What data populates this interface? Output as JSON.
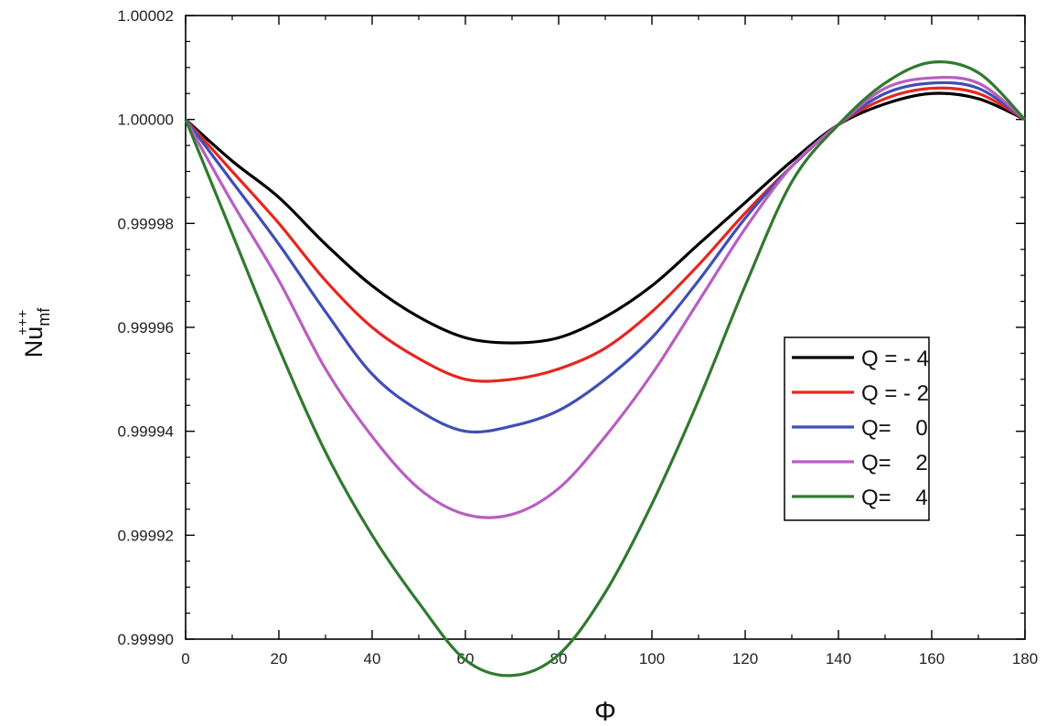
{
  "chart_data": {
    "type": "line",
    "title": "",
    "xlabel": "Φ",
    "ylabel": {
      "base": "Nu",
      "superscript": "+++",
      "subscript": "mf"
    },
    "xlim": [
      0,
      180
    ],
    "ylim": [
      0.9999,
      1.00002
    ],
    "xticks": [
      "0",
      "20",
      "40",
      "60",
      "80",
      "100",
      "120",
      "140",
      "160",
      "180"
    ],
    "yticks": [
      "0.99990",
      "0.99992",
      "0.99994",
      "0.99996",
      "0.99998",
      "1.00000",
      "1.00002"
    ],
    "grid": false,
    "legend_position": "right-middle",
    "x": [
      0,
      10,
      20,
      30,
      40,
      50,
      60,
      70,
      80,
      90,
      100,
      110,
      120,
      130,
      140,
      150,
      160,
      170,
      180
    ],
    "series": [
      {
        "name": "Q = - 4",
        "color": "#000000",
        "values": [
          1.0,
          0.999992,
          0.999985,
          0.999976,
          0.999968,
          0.999962,
          0.999958,
          0.999957,
          0.999958,
          0.999962,
          0.999968,
          0.999976,
          0.999984,
          0.999992,
          0.999999,
          1.000003,
          1.000005,
          1.000004,
          1.0
        ]
      },
      {
        "name": "Q = - 2",
        "color": "#e8251f",
        "values": [
          1.0,
          0.99999,
          0.99998,
          0.999969,
          0.99996,
          0.999954,
          0.99995,
          0.99995,
          0.999952,
          0.999956,
          0.999963,
          0.999972,
          0.999982,
          0.999991,
          0.999999,
          1.000004,
          1.000006,
          1.000005,
          1.0
        ]
      },
      {
        "name": "Q=    0",
        "color": "#3f4fb4",
        "values": [
          1.0,
          0.999988,
          0.999976,
          0.999963,
          0.999951,
          0.999944,
          0.99994,
          0.999941,
          0.999944,
          0.99995,
          0.999958,
          0.999969,
          0.999981,
          0.999991,
          0.999999,
          1.000005,
          1.000007,
          1.000006,
          1.0
        ]
      },
      {
        "name": "Q=    2",
        "color": "#b95ec0",
        "values": [
          1.0,
          0.999984,
          0.999969,
          0.999952,
          0.999939,
          0.999929,
          0.999924,
          0.999924,
          0.999929,
          0.999939,
          0.999951,
          0.999965,
          0.999979,
          0.999991,
          0.999999,
          1.000006,
          1.000008,
          1.000007,
          1.0
        ]
      },
      {
        "name": "Q=    4",
        "color": "#2f7a2f",
        "values": [
          1.0,
          0.999978,
          0.999956,
          0.999936,
          0.99992,
          0.999907,
          0.999896,
          0.999893,
          0.999897,
          0.999909,
          0.999926,
          0.999946,
          0.999968,
          0.999988,
          0.999999,
          1.000007,
          1.000011,
          1.000009,
          1.0
        ]
      }
    ]
  }
}
